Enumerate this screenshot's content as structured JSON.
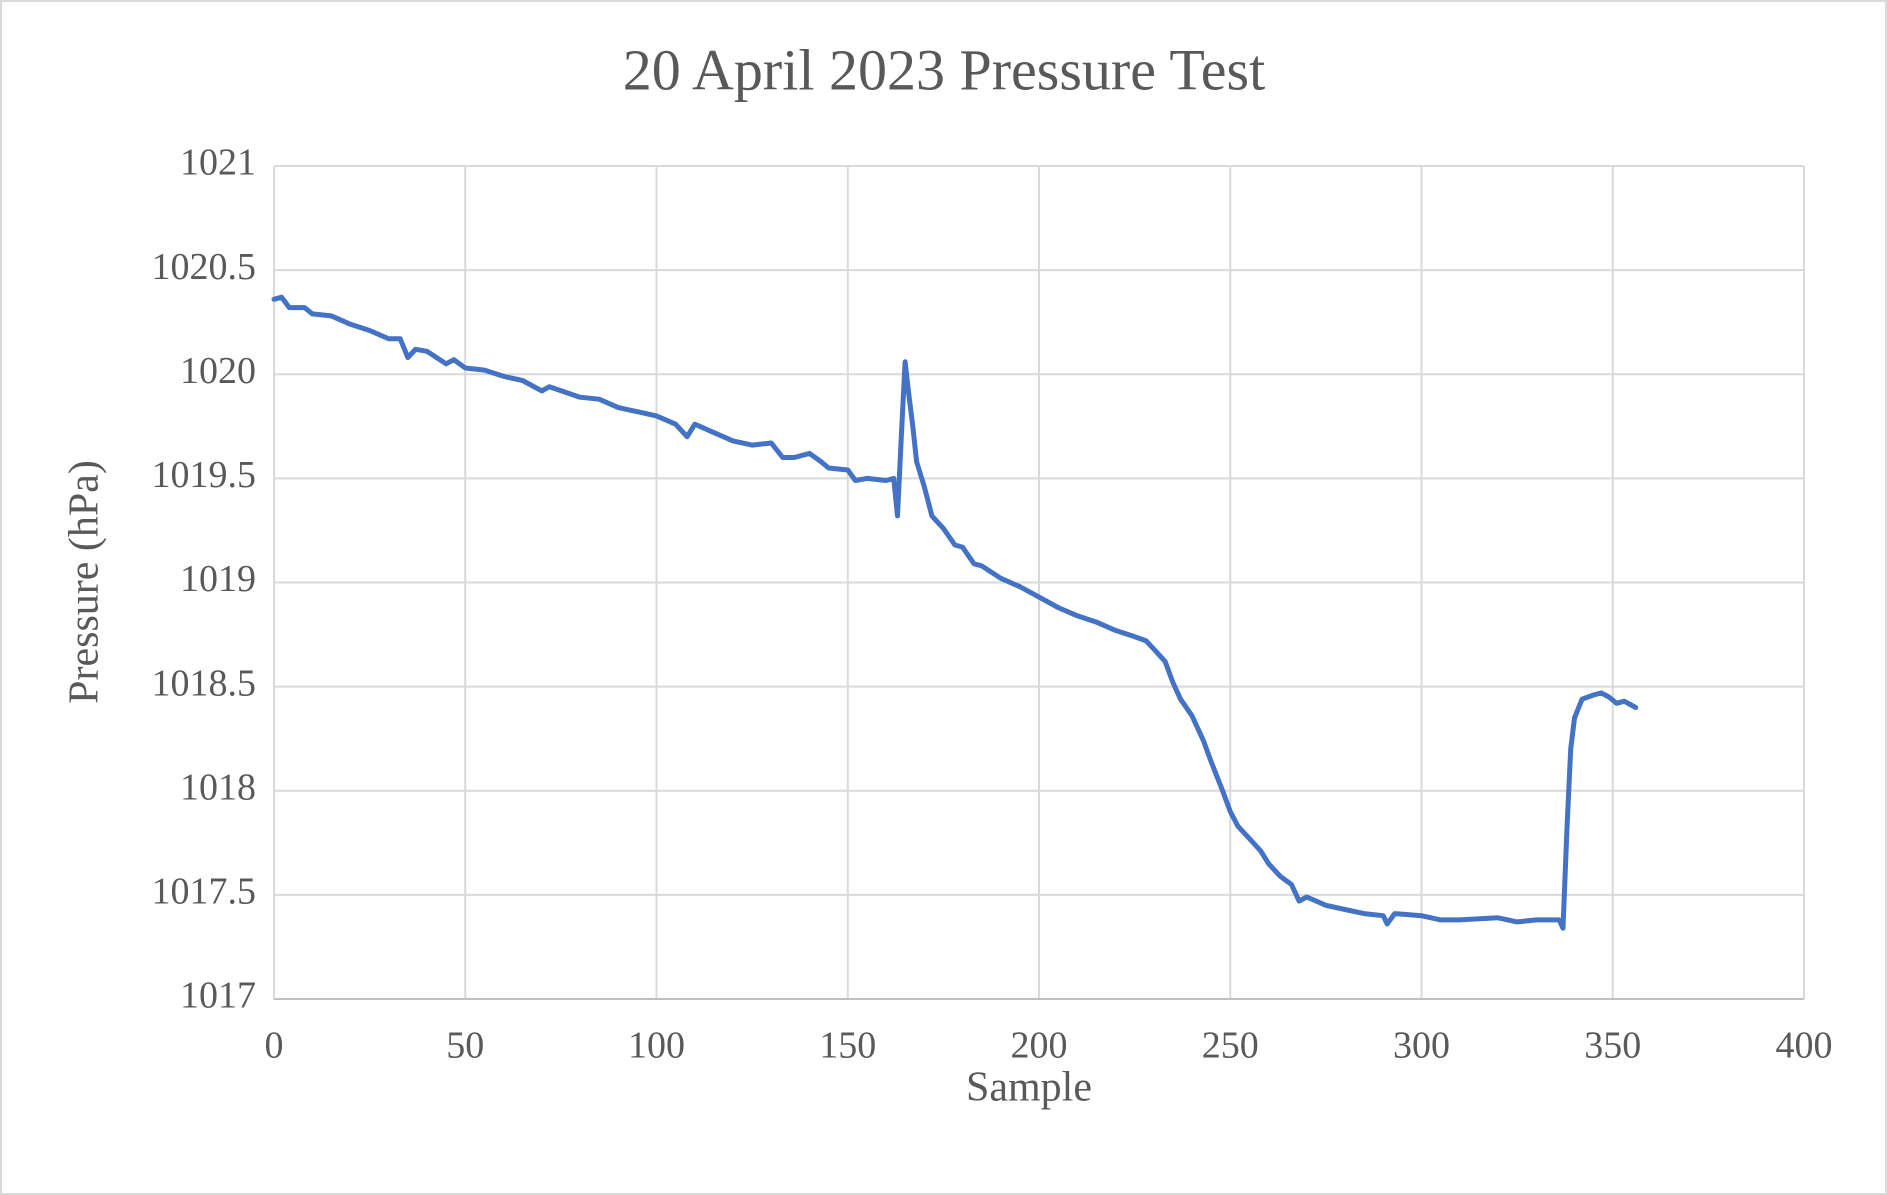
{
  "chart_data": {
    "type": "line",
    "title": "20 April 2023 Pressure Test",
    "x_label": "Sample",
    "y_label": "Pressure (hPa)",
    "x": [
      0,
      2,
      4,
      8,
      10,
      15,
      20,
      25,
      30,
      33,
      35,
      37,
      40,
      45,
      47,
      50,
      55,
      60,
      65,
      70,
      72,
      80,
      85,
      90,
      95,
      100,
      105,
      108,
      110,
      115,
      120,
      125,
      130,
      133,
      136,
      140,
      143,
      145,
      150,
      152,
      155,
      160,
      162,
      163,
      164,
      165,
      166,
      167,
      168,
      170,
      172,
      175,
      178,
      180,
      183,
      185,
      190,
      195,
      200,
      205,
      210,
      215,
      220,
      225,
      228,
      230,
      233,
      235,
      237,
      240,
      243,
      245,
      248,
      250,
      252,
      255,
      258,
      260,
      263,
      266,
      268,
      270,
      275,
      280,
      285,
      290,
      291,
      293,
      300,
      305,
      310,
      320,
      325,
      330,
      336,
      337,
      338,
      339,
      340,
      342,
      345,
      347,
      349,
      351,
      353,
      356
    ],
    "series": [
      {
        "name": "Pressure",
        "color": "#4472c4",
        "values": [
          1020.36,
          1020.37,
          1020.32,
          1020.32,
          1020.29,
          1020.28,
          1020.24,
          1020.21,
          1020.17,
          1020.17,
          1020.08,
          1020.12,
          1020.11,
          1020.05,
          1020.07,
          1020.03,
          1020.02,
          1019.99,
          1019.97,
          1019.92,
          1019.94,
          1019.89,
          1019.88,
          1019.84,
          1019.82,
          1019.8,
          1019.76,
          1019.7,
          1019.76,
          1019.72,
          1019.68,
          1019.66,
          1019.67,
          1019.6,
          1019.6,
          1019.62,
          1019.58,
          1019.55,
          1019.54,
          1019.49,
          1019.5,
          1019.49,
          1019.5,
          1019.32,
          1019.7,
          1020.06,
          1019.9,
          1019.75,
          1019.58,
          1019.46,
          1019.32,
          1019.26,
          1019.18,
          1019.17,
          1019.09,
          1019.08,
          1019.02,
          1018.98,
          1018.93,
          1018.88,
          1018.84,
          1018.81,
          1018.77,
          1018.74,
          1018.72,
          1018.68,
          1018.62,
          1018.52,
          1018.44,
          1018.36,
          1018.24,
          1018.14,
          1018.0,
          1017.9,
          1017.83,
          1017.77,
          1017.71,
          1017.65,
          1017.59,
          1017.55,
          1017.47,
          1017.49,
          1017.45,
          1017.43,
          1017.41,
          1017.4,
          1017.36,
          1017.41,
          1017.4,
          1017.38,
          1017.38,
          1017.39,
          1017.37,
          1017.38,
          1017.38,
          1017.34,
          1017.8,
          1018.2,
          1018.35,
          1018.44,
          1018.46,
          1018.47,
          1018.45,
          1018.42,
          1018.43,
          1018.4
        ]
      }
    ],
    "xlim": [
      0,
      400
    ],
    "xticks": [
      0,
      50,
      100,
      150,
      200,
      250,
      300,
      350,
      400
    ],
    "ylim": [
      1017,
      1021
    ],
    "yticks": [
      1017,
      1017.5,
      1018,
      1018.5,
      1019,
      1019.5,
      1020,
      1020.5,
      1021
    ],
    "grid": true
  }
}
